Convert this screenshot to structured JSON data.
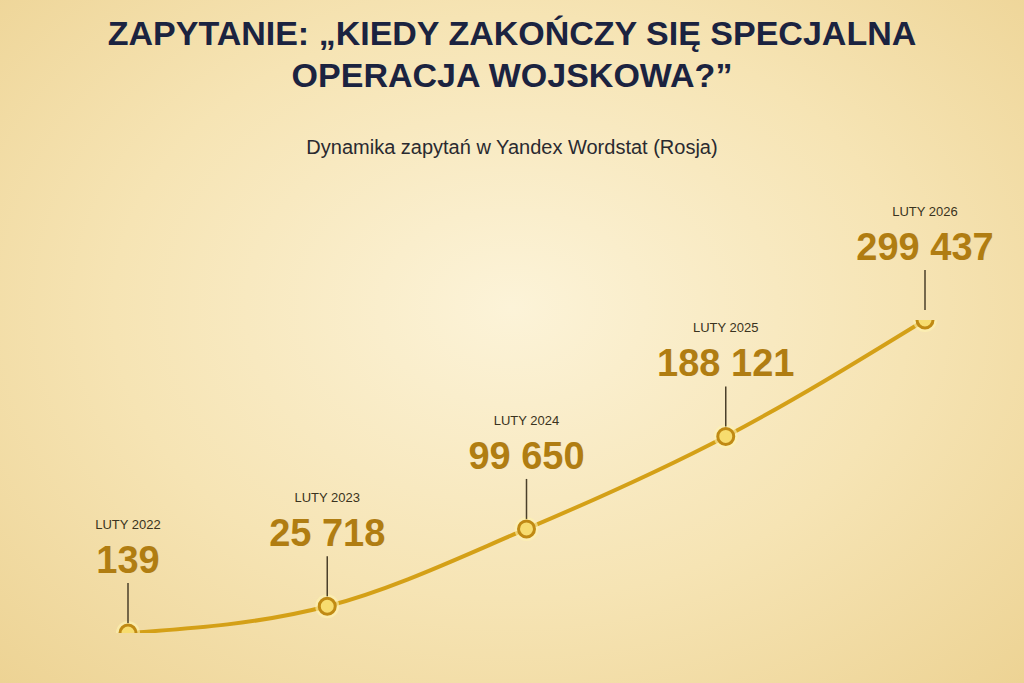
{
  "chart_data": {
    "type": "line",
    "title": "ZAPYTANIE: „KIEDY ZAKOŃCZY SIĘ SPECJALNA OPERACJA WOJSKOWA?”",
    "subtitle": "Dynamika zapytań w Yandex Wordstat (Rosja)",
    "categories": [
      "LUTY 2022",
      "LUTY 2023",
      "LUTY 2024",
      "LUTY 2025",
      "LUTY 2026"
    ],
    "values": [
      139,
      25718,
      99650,
      188121,
      299437
    ],
    "value_labels": [
      "139",
      "25 718",
      "99 650",
      "188 121",
      "299 437"
    ],
    "color": "#d4a017",
    "marker": "circle",
    "data_labels": true,
    "tick_labels": false
  }
}
